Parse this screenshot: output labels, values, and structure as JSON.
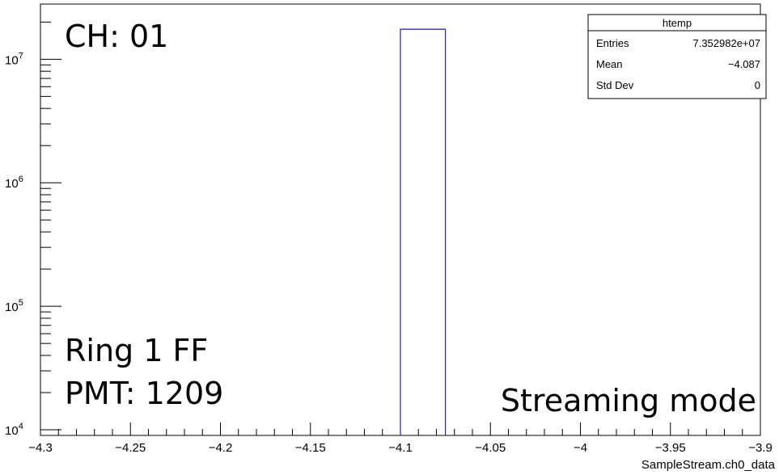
{
  "chart_data": {
    "type": "bar",
    "xlabel": "SampleStream.ch0_data",
    "ylabel": "",
    "xlim": [
      -4.3,
      -3.9
    ],
    "ylim": [
      9000,
      28000000
    ],
    "yscale": "log",
    "grid": false,
    "x_tick_labels": [
      "−4.3",
      "−4.25",
      "−4.2",
      "−4.15",
      "−4.1",
      "−4.05",
      "−4",
      "−3.95",
      "−3.9"
    ],
    "x_ticks": [
      -4.3,
      -4.25,
      -4.2,
      -4.15,
      -4.1,
      -4.05,
      -4.0,
      -3.95,
      -3.9
    ],
    "y_ticks": [
      10000,
      100000,
      1000000,
      10000000
    ],
    "y_tick_labels": [
      {
        "base": "10",
        "exp": "4"
      },
      {
        "base": "10",
        "exp": "5"
      },
      {
        "base": "10",
        "exp": "6"
      },
      {
        "base": "10",
        "exp": "7"
      }
    ],
    "bins": [
      {
        "x0": -4.1,
        "x1": -4.075,
        "value": 17500000
      }
    ],
    "series_color": "#3030a0"
  },
  "stats": {
    "title": "htemp",
    "rows": [
      {
        "label": "Entries",
        "value": "7.352982e+07"
      },
      {
        "label": "Mean",
        "value": "−4.087"
      },
      {
        "label": "Std Dev",
        "value": "0"
      }
    ]
  },
  "annotations": {
    "channel": "CH: 01",
    "ring": "Ring 1 FF",
    "pmt": "PMT: 1209",
    "mode": "Streaming mode"
  }
}
